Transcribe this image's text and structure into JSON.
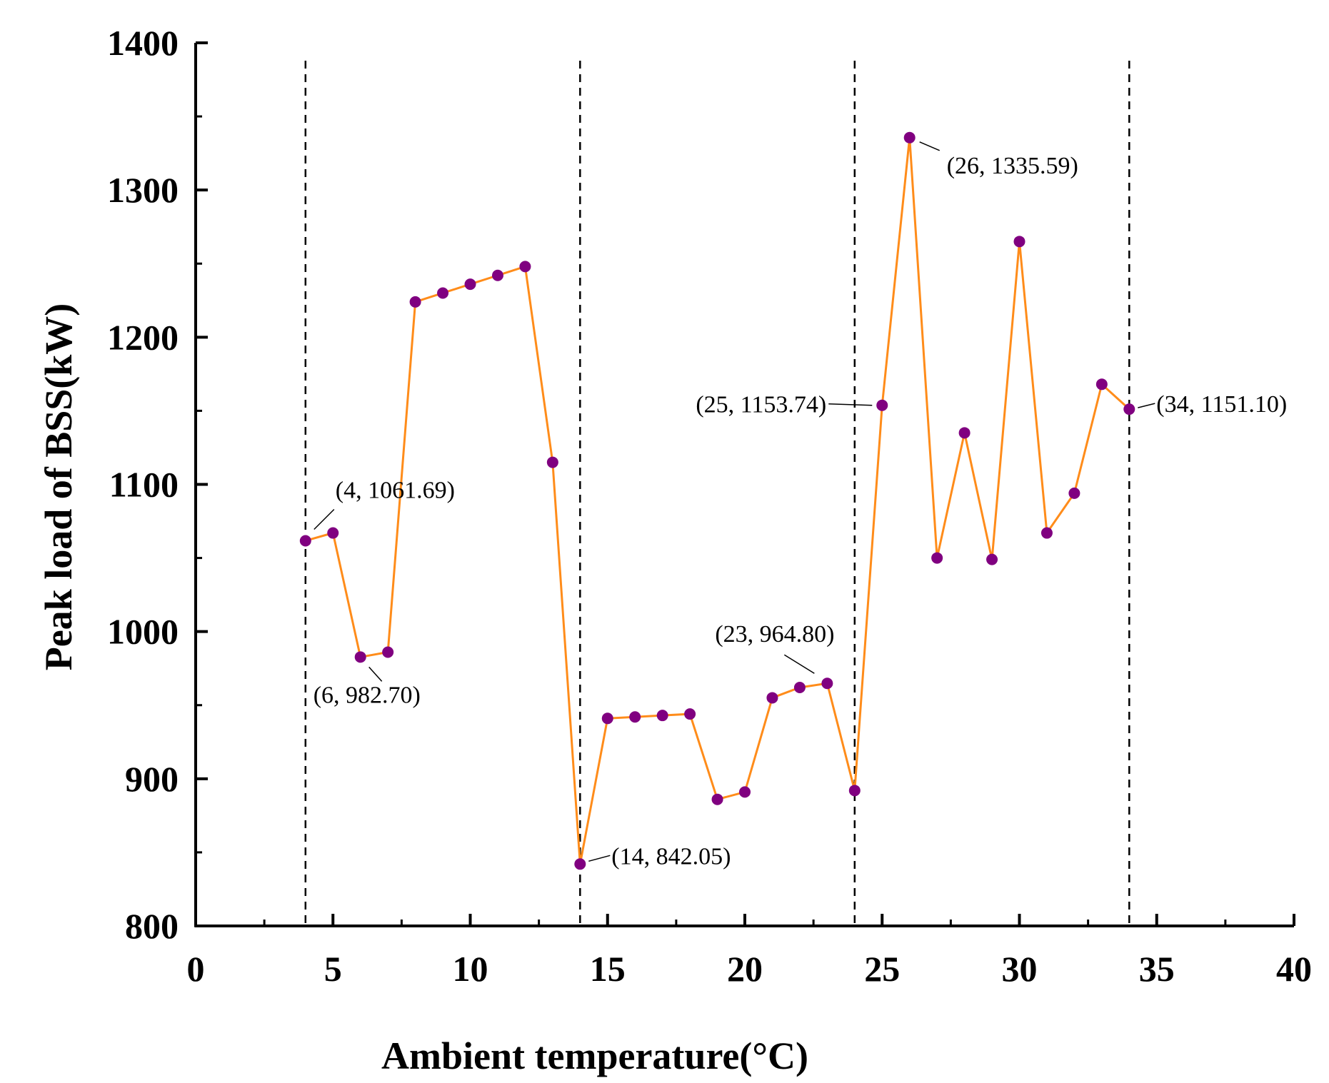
{
  "chart_data": {
    "type": "line",
    "title": "",
    "xlabel": "Ambient temperature(°C)",
    "ylabel": "Peak load of BSS(kW)",
    "xlim": [
      0,
      40
    ],
    "ylim": [
      800,
      1400
    ],
    "x_ticks": [
      0,
      5,
      10,
      15,
      20,
      25,
      30,
      35,
      40
    ],
    "y_ticks": [
      800,
      900,
      1000,
      1100,
      1200,
      1300,
      1400
    ],
    "grid": false,
    "legend": null,
    "vertical_dashed_lines_x": [
      4,
      14,
      24,
      34
    ],
    "series": [
      {
        "name": "Peak load",
        "line_color": "#ff8c1a",
        "marker_color": "#800080",
        "x": [
          4,
          5,
          6,
          7,
          8,
          9,
          10,
          11,
          12,
          13,
          14,
          15,
          16,
          17,
          18,
          19,
          20,
          21,
          22,
          23,
          24,
          25,
          26,
          27,
          28,
          29,
          30,
          31,
          32,
          33,
          34
        ],
        "y": [
          1061.69,
          1067,
          982.7,
          986,
          1224,
          1230,
          1236,
          1242,
          1248,
          1115,
          842.05,
          941,
          942,
          943,
          944,
          886,
          891,
          955,
          962,
          964.8,
          892,
          1153.74,
          1335.59,
          1050,
          1135,
          1049,
          1265,
          1067,
          1094,
          1168,
          1151.1
        ]
      }
    ],
    "annotations": [
      {
        "text": "(4, 1061.69)",
        "x": 4,
        "y": 1061.69
      },
      {
        "text": "(6, 982.70)",
        "x": 6,
        "y": 982.7
      },
      {
        "text": "(14, 842.05)",
        "x": 14,
        "y": 842.05
      },
      {
        "text": "(23, 964.80)",
        "x": 23,
        "y": 964.8
      },
      {
        "text": "(25, 1153.74)",
        "x": 25,
        "y": 1153.74
      },
      {
        "text": "(26, 1335.59)",
        "x": 26,
        "y": 1335.59
      },
      {
        "text": "(34, 1151.10)",
        "x": 34,
        "y": 1151.1
      }
    ]
  }
}
